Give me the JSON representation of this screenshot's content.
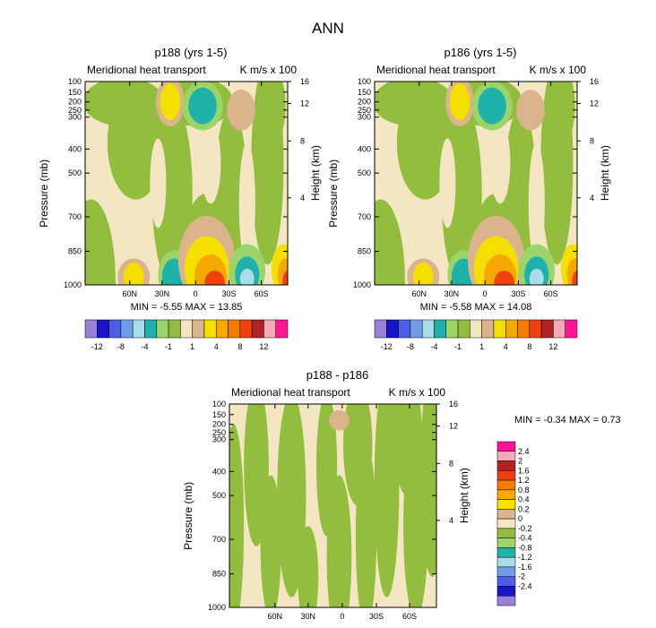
{
  "figure_title": "ANN",
  "chart_data": [
    {
      "type": "heatmap",
      "title": "p188 (yrs 1-5)",
      "left_subtitle": "Meridional heat transport",
      "right_subtitle": "K m/s x 100",
      "ylabel": "Pressure (mb)",
      "ylabel_right": "Height (km)",
      "y_ticks": [
        "100",
        "150",
        "200",
        "250",
        "300",
        "400",
        "500",
        "700",
        "850",
        "1000"
      ],
      "y_ticks_right": [
        "16",
        "12",
        "8",
        "4"
      ],
      "x_ticks": [
        "60N",
        "30N",
        "0",
        "30S",
        "60S"
      ],
      "stats_text": "MIN = -5.55  MAX = 13.85",
      "min": -5.55,
      "max": 13.85,
      "colorbar_orientation": "horizontal",
      "colorbar_labels": [
        "-12",
        "-8",
        "-4",
        "-1",
        "1",
        "4",
        "8",
        "12"
      ],
      "colorbar_label_slots": [
        1,
        3,
        5,
        7,
        9,
        11,
        13,
        15
      ],
      "contour_levels": [
        -16,
        -12,
        -10,
        -8,
        -6,
        -4,
        -2,
        -1,
        0,
        1,
        2,
        4,
        6,
        8,
        10,
        12,
        16
      ]
    },
    {
      "type": "heatmap",
      "title": "p186 (yrs 1-5)",
      "left_subtitle": "Meridional heat transport",
      "right_subtitle": "K m/s x 100",
      "ylabel": "Pressure (mb)",
      "ylabel_right": "Height (km)",
      "y_ticks": [
        "100",
        "150",
        "200",
        "250",
        "300",
        "400",
        "500",
        "700",
        "850",
        "1000"
      ],
      "y_ticks_right": [
        "16",
        "12",
        "8",
        "4"
      ],
      "x_ticks": [
        "60N",
        "30N",
        "0",
        "30S",
        "60S"
      ],
      "stats_text": "MIN = -5.58  MAX = 14.08",
      "min": -5.58,
      "max": 14.08,
      "colorbar_orientation": "horizontal",
      "colorbar_labels": [
        "-12",
        "-8",
        "-4",
        "-1",
        "1",
        "4",
        "8",
        "12"
      ],
      "colorbar_label_slots": [
        1,
        3,
        5,
        7,
        9,
        11,
        13,
        15
      ],
      "contour_levels": [
        -16,
        -12,
        -10,
        -8,
        -6,
        -4,
        -2,
        -1,
        0,
        1,
        2,
        4,
        6,
        8,
        10,
        12,
        16
      ]
    },
    {
      "type": "heatmap",
      "title": "p188 - p186",
      "left_subtitle": "Meridional heat transport",
      "right_subtitle": "K m/s x 100",
      "ylabel": "Pressure (mb)",
      "ylabel_right": "Height (km)",
      "y_ticks": [
        "100",
        "150",
        "200",
        "250",
        "300",
        "400",
        "500",
        "700",
        "850",
        "1000"
      ],
      "y_ticks_right": [
        "16",
        "12",
        "8",
        "4"
      ],
      "x_ticks": [
        "60N",
        "30N",
        "0",
        "30S",
        "60S"
      ],
      "stats_text": "MIN = -0.34  MAX =  0.73",
      "min": -0.34,
      "max": 0.73,
      "colorbar_orientation": "vertical",
      "colorbar_labels": [
        "2.4",
        "2",
        "1.6",
        "1.2",
        "0.8",
        "0.4",
        "0.2",
        "0",
        "-0.2",
        "-0.4",
        "-0.8",
        "-1.2",
        "-1.6",
        "-2",
        "-2.4"
      ]
    }
  ],
  "colors": {
    "background": "#ffffff",
    "palette": [
      "#9a80d6",
      "#1a14c8",
      "#4a5fe6",
      "#6f9de8",
      "#a8dde8",
      "#20b2aa",
      "#9bd46a",
      "#93bd3e",
      "#f5e6c3",
      "#d9b48c",
      "#f5df00",
      "#f5a800",
      "#f57c00",
      "#f04010",
      "#b22222",
      "#f5a8b8",
      "#ff1493"
    ],
    "diff_palette": [
      "#ff1493",
      "#f5a8b8",
      "#b22222",
      "#f04010",
      "#f57c00",
      "#f5a800",
      "#f5df00",
      "#d9b48c",
      "#f5e6c3",
      "#93bd3e",
      "#9bd46a",
      "#20b2aa",
      "#a8dde8",
      "#6f9de8",
      "#4a5fe6",
      "#1a14c8",
      "#9a80d6"
    ]
  }
}
